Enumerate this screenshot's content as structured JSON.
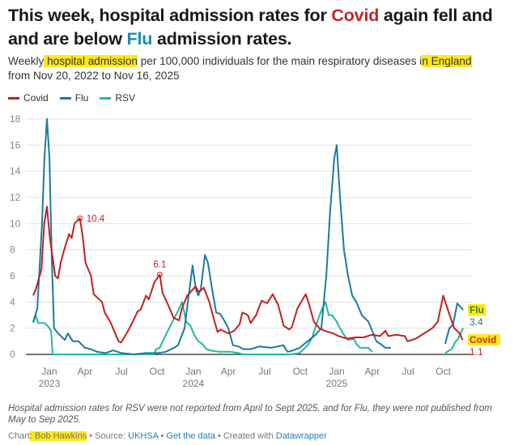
{
  "title": {
    "part1": "This week, hospital admission rates for ",
    "covid": "Covid",
    "part2": " again fell and and are below ",
    "flu": "Flu",
    "part3": " admission rates."
  },
  "subtitle": {
    "part1": "Weekly",
    "hl1": " hospital admission",
    "part2": " per 100,000 individuals for the main respiratory diseases i",
    "hl2": "n England",
    "part3": " from Nov 20, 2022 to Nov 16, 2025"
  },
  "colors": {
    "covid": "#c2201f",
    "flu": "#1b7a9e",
    "rsv": "#1fb99f",
    "title_covid": "#c0272d",
    "title_flu": "#1d8fa5",
    "highlight": "#ffe81a"
  },
  "chart_data": {
    "type": "line",
    "xunit": "weeks since Nov 20, 2022",
    "ylim": [
      0,
      18
    ],
    "yticks": [
      0,
      2,
      4,
      6,
      8,
      10,
      12,
      14,
      16,
      18
    ],
    "xticks": [
      {
        "w": 5.9,
        "label": "Jan",
        "year": "2023"
      },
      {
        "w": 18.8,
        "label": "Apr",
        "year": ""
      },
      {
        "w": 32.1,
        "label": "Jul",
        "year": ""
      },
      {
        "w": 45,
        "label": "Oct",
        "year": ""
      },
      {
        "w": 58.2,
        "label": "Jan",
        "year": "2024"
      },
      {
        "w": 70.9,
        "label": "Apr",
        "year": ""
      },
      {
        "w": 84.1,
        "label": "Jul",
        "year": ""
      },
      {
        "w": 97,
        "label": "Oct",
        "year": ""
      },
      {
        "w": 110.3,
        "label": "Jan",
        "year": "2025"
      },
      {
        "w": 123.2,
        "label": "Apr",
        "year": ""
      },
      {
        "w": 136.2,
        "label": "Jul",
        "year": ""
      },
      {
        "w": 149,
        "label": "Oct",
        "year": ""
      }
    ],
    "grid": true,
    "legend": [
      "Covid",
      "Flu",
      "RSV"
    ],
    "series": [
      {
        "name": "Covid",
        "key": "covid",
        "segments": [
          [
            [
              0,
              4.5
            ],
            [
              1,
              5
            ],
            [
              3,
              6.5
            ],
            [
              4,
              10
            ],
            [
              5,
              11.3
            ],
            [
              6,
              9
            ],
            [
              8,
              6
            ],
            [
              9,
              5.8
            ],
            [
              10,
              7
            ],
            [
              11,
              7.8
            ],
            [
              13,
              9.2
            ],
            [
              14,
              8.9
            ],
            [
              15,
              10
            ],
            [
              17,
              10.4
            ],
            [
              18,
              9
            ],
            [
              19,
              7
            ],
            [
              21,
              6
            ],
            [
              22,
              4.6
            ],
            [
              25,
              4
            ],
            [
              26,
              3.2
            ],
            [
              28,
              2.5
            ],
            [
              29,
              2
            ],
            [
              31,
              1
            ],
            [
              32,
              0.9
            ],
            [
              35,
              2
            ],
            [
              38,
              3.3
            ],
            [
              39,
              3.4
            ],
            [
              41,
              4.5
            ],
            [
              42,
              4.2
            ],
            [
              44,
              5.5
            ],
            [
              46,
              6.1
            ],
            [
              47,
              4.7
            ],
            [
              49,
              3.8
            ],
            [
              51,
              2.8
            ],
            [
              53,
              2.6
            ],
            [
              54,
              3.5
            ],
            [
              56,
              4.5
            ],
            [
              59,
              5.2
            ],
            [
              60,
              4.8
            ],
            [
              61,
              4.9
            ],
            [
              62,
              5.1
            ],
            [
              64,
              4
            ],
            [
              65,
              3.2
            ],
            [
              67,
              1.7
            ],
            [
              68,
              1.9
            ],
            [
              69,
              1.8
            ],
            [
              71,
              1.6
            ],
            [
              73,
              1.8
            ],
            [
              75,
              2.3
            ],
            [
              76,
              3.2
            ],
            [
              78,
              3
            ],
            [
              79,
              2.4
            ],
            [
              81,
              3
            ],
            [
              83,
              4.1
            ],
            [
              85,
              3.9
            ],
            [
              87,
              4.6
            ],
            [
              89,
              3.8
            ],
            [
              91,
              2.2
            ],
            [
              93,
              1.9
            ],
            [
              94,
              2.1
            ],
            [
              96,
              3.5
            ],
            [
              99,
              4.6
            ],
            [
              100,
              4
            ],
            [
              102,
              2.5
            ],
            [
              104,
              2
            ],
            [
              106,
              1.8
            ],
            [
              109,
              1.6
            ],
            [
              111,
              1.4
            ],
            [
              114,
              1.2
            ],
            [
              117,
              1.3
            ],
            [
              120,
              1.3
            ],
            [
              123,
              1.5
            ],
            [
              126,
              1.4
            ],
            [
              128,
              1.8
            ],
            [
              129,
              1.4
            ],
            [
              132,
              1.5
            ],
            [
              135,
              1.4
            ],
            [
              136,
              1
            ],
            [
              139,
              1.2
            ],
            [
              142,
              1.6
            ],
            [
              145,
              2
            ],
            [
              147,
              2.5
            ],
            [
              148,
              3.5
            ],
            [
              149,
              4.5
            ],
            [
              151,
              3.2
            ],
            [
              153,
              2
            ],
            [
              154,
              1.8
            ],
            [
              155,
              1.6
            ],
            [
              156,
              1.1
            ]
          ]
        ],
        "last": "1.1",
        "end_label": "Covid"
      },
      {
        "name": "Flu",
        "key": "flu",
        "segments": [
          [
            [
              0,
              2.5
            ],
            [
              1.5,
              3.5
            ],
            [
              3.2,
              10
            ],
            [
              4.1,
              15
            ],
            [
              5,
              18
            ],
            [
              5.9,
              15
            ],
            [
              6.8,
              7
            ],
            [
              7.6,
              2
            ],
            [
              9.1,
              1.6
            ],
            [
              11.5,
              1.1
            ],
            [
              12.6,
              1.6
            ],
            [
              14.4,
              1
            ],
            [
              16.5,
              1
            ],
            [
              18.8,
              0.5
            ],
            [
              20.9,
              0.4
            ],
            [
              23.2,
              0.2
            ],
            [
              26.2,
              0.1
            ],
            [
              29.1,
              0.3
            ],
            [
              32.1,
              0.1
            ],
            [
              36.5,
              0
            ],
            [
              40.9,
              0.1
            ],
            [
              45.3,
              0.1
            ],
            [
              48.2,
              0.2
            ],
            [
              51.2,
              0.5
            ],
            [
              52.6,
              0.7
            ],
            [
              55,
              2
            ],
            [
              56.5,
              4.5
            ],
            [
              57.9,
              6.8
            ],
            [
              59.1,
              5
            ],
            [
              60,
              4.5
            ],
            [
              60.9,
              5
            ],
            [
              62.4,
              7.6
            ],
            [
              63.5,
              7
            ],
            [
              65,
              5
            ],
            [
              66.5,
              3.2
            ],
            [
              67.9,
              3.1
            ],
            [
              69.4,
              2.6
            ],
            [
              70.9,
              2
            ],
            [
              72.6,
              0.7
            ],
            [
              74.7,
              0.6
            ],
            [
              76.2,
              0.4
            ],
            [
              79.1,
              0.4
            ],
            [
              82.1,
              0.6
            ],
            [
              86.5,
              0.5
            ],
            [
              90.9,
              0.7
            ],
            [
              92.4,
              0.2
            ],
            [
              94.4,
              0.3
            ],
            [
              96.8,
              0.5
            ],
            [
              99.7,
              1
            ],
            [
              102.6,
              1.5
            ],
            [
              104.7,
              2
            ],
            [
              106.5,
              6
            ],
            [
              107.9,
              11
            ],
            [
              109.4,
              15
            ],
            [
              110.3,
              16
            ],
            [
              111.5,
              12
            ],
            [
              112.9,
              8
            ],
            [
              114.4,
              6
            ],
            [
              115.9,
              4.5
            ],
            [
              117.4,
              4
            ],
            [
              119.4,
              3
            ],
            [
              121.8,
              2.5
            ],
            [
              123.2,
              1.8
            ],
            [
              124.7,
              1
            ],
            [
              126.2,
              0.8
            ],
            [
              127.9,
              0.5
            ],
            [
              130,
              0.5
            ]
          ],
          [
            [
              149.7,
              0.8
            ],
            [
              151.2,
              2
            ],
            [
              152.6,
              2.3
            ],
            [
              154.1,
              3.9
            ],
            [
              156.2,
              3.4
            ]
          ]
        ],
        "last": "3.4",
        "end_label": "Flu"
      },
      {
        "name": "RSV",
        "key": "rsv",
        "segments": [
          [
            [
              0,
              2.4
            ],
            [
              0.9,
              3
            ],
            [
              1.8,
              2.4
            ],
            [
              4.1,
              2.4
            ],
            [
              5.6,
              2.1
            ],
            [
              6.5,
              1.8
            ],
            [
              7.1,
              0
            ],
            [
              43.8,
              0
            ],
            [
              44.7,
              0.4
            ],
            [
              45.9,
              0.5
            ],
            [
              48.2,
              1.5
            ],
            [
              50.6,
              2.5
            ],
            [
              52.6,
              3.3
            ],
            [
              54.1,
              4
            ],
            [
              55.6,
              2.5
            ],
            [
              57.1,
              2.2
            ],
            [
              58.5,
              1.5
            ],
            [
              60,
              1
            ],
            [
              61.5,
              0.8
            ],
            [
              62.9,
              0.4
            ],
            [
              64.4,
              0.3
            ],
            [
              67.4,
              0.2
            ],
            [
              71.8,
              0.2
            ],
            [
              74.7,
              0.1
            ],
            [
              76.2,
              0
            ],
            [
              93.8,
              0
            ],
            [
              96.8,
              0.1
            ],
            [
              99.7,
              0.7
            ],
            [
              101.2,
              1.2
            ],
            [
              103.2,
              2.5
            ],
            [
              105,
              3.5
            ],
            [
              106.2,
              4
            ],
            [
              107.4,
              3
            ],
            [
              108.5,
              3
            ],
            [
              110,
              2.6
            ],
            [
              111.5,
              2
            ],
            [
              112.9,
              1.5
            ],
            [
              114.4,
              1.1
            ],
            [
              116.5,
              1.2
            ],
            [
              117.4,
              0.8
            ],
            [
              118.8,
              0.5
            ],
            [
              121.8,
              0.5
            ],
            [
              123.2,
              0.2
            ]
          ],
          [
            [
              149.7,
              0.1
            ],
            [
              151.2,
              0.3
            ],
            [
              152.1,
              0.4
            ],
            [
              153.2,
              0.9
            ],
            [
              154.4,
              1.2
            ],
            [
              156.2,
              2
            ]
          ]
        ]
      }
    ],
    "annotations": [
      {
        "series": "Covid",
        "w": 17,
        "v": 10.4,
        "label": "10.4"
      },
      {
        "series": "Covid",
        "w": 46,
        "v": 6.1,
        "label": "6.1"
      }
    ]
  },
  "footnote": "Hospital admission rates for RSV were not reported from April to Sept 2025, and for Flu, they were not published from May to Sep 2025.",
  "credit": {
    "chart_label": "Chart",
    "author": ": Bob Hawkins",
    "sep1": " • Source: ",
    "source": "UKHSA",
    "sep2": " • ",
    "get_data": "Get the data",
    "sep3": " • Created with ",
    "tool": "Datawrapper"
  }
}
